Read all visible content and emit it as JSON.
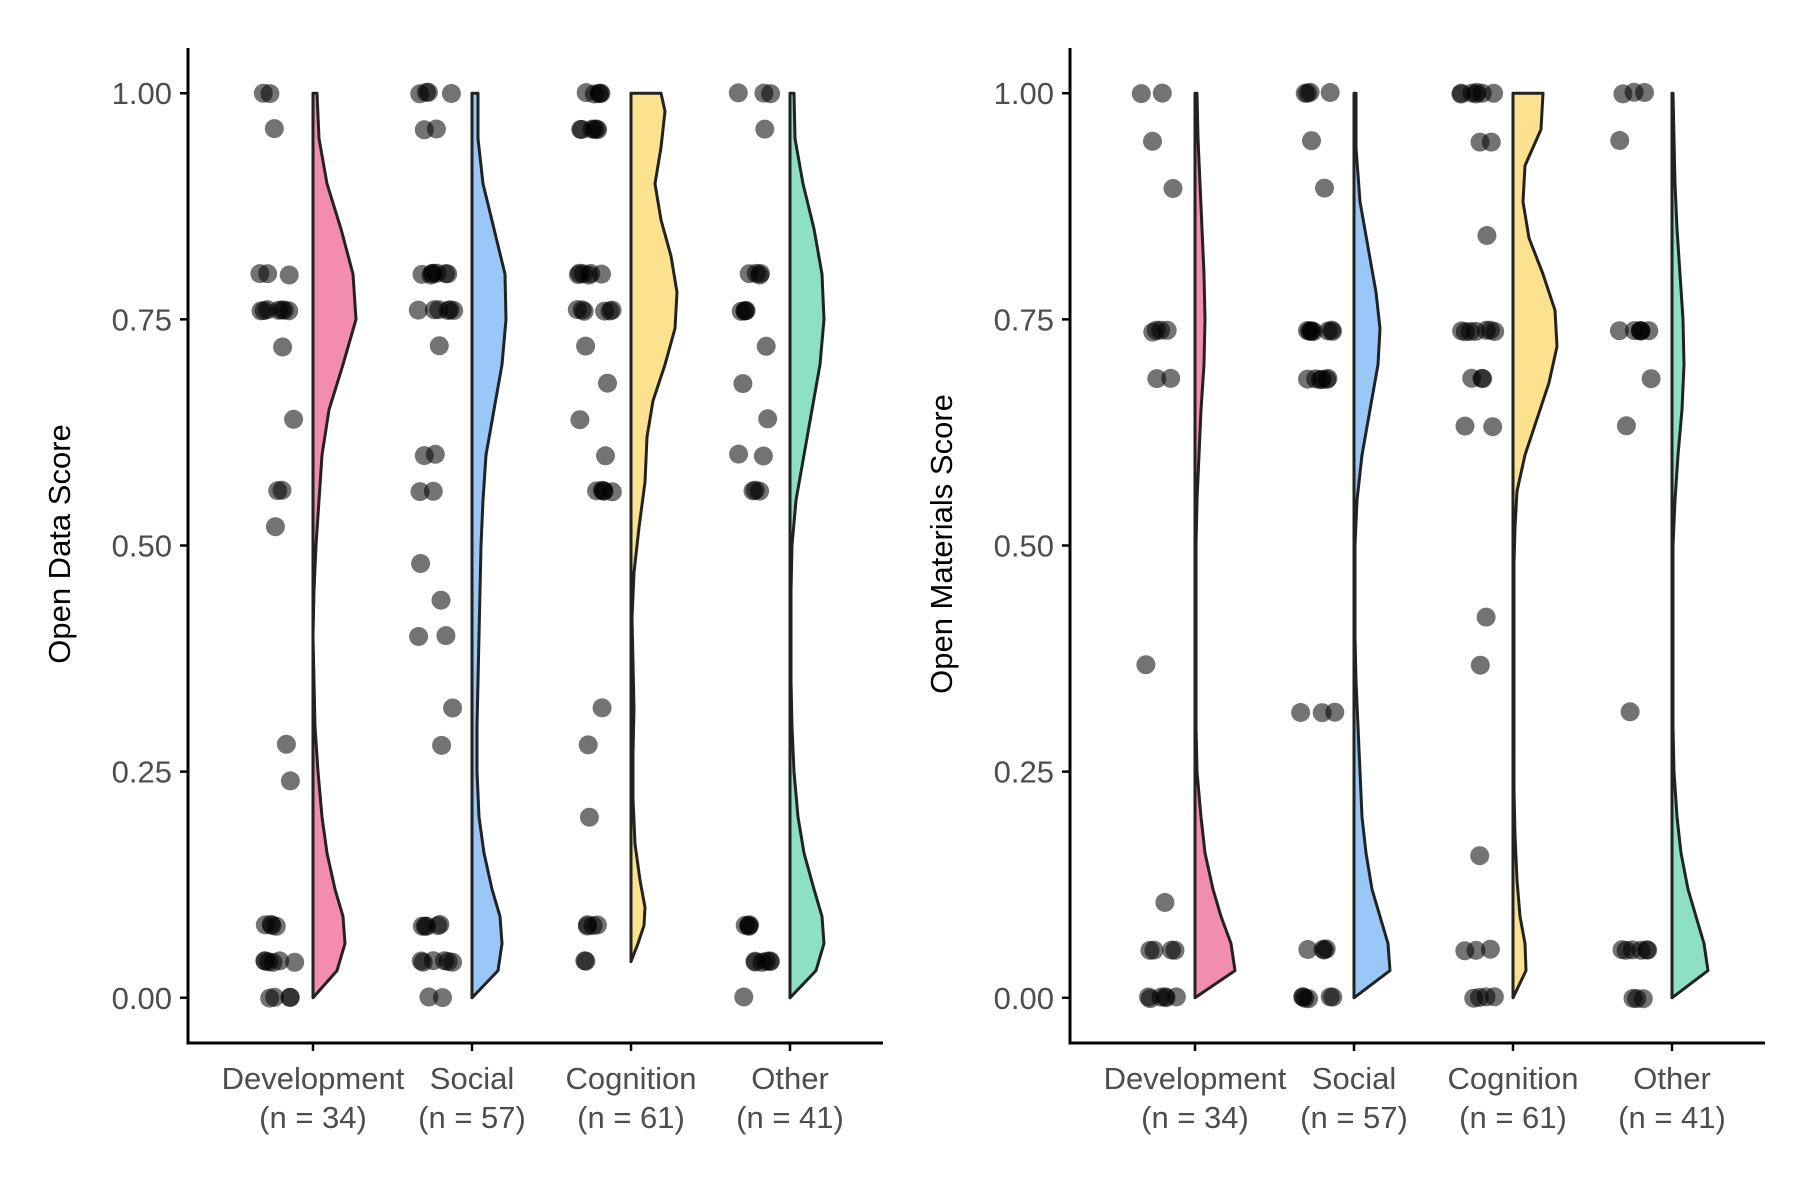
{
  "chart_data": [
    {
      "type": "raincloud",
      "ylabel": "Open Data Score",
      "ylim": [
        -0.05,
        1.05
      ],
      "y_ticks": [
        "0.00",
        "0.25",
        "0.50",
        "0.75",
        "1.00"
      ],
      "categories": [
        {
          "label": "Development",
          "n_label": "(n = 34)",
          "color": "#F28CB1",
          "points": [
            1.0,
            1.0,
            0.96,
            0.8,
            0.8,
            0.8,
            0.76,
            0.76,
            0.76,
            0.76,
            0.76,
            0.76,
            0.76,
            0.72,
            0.64,
            0.56,
            0.56,
            0.52,
            0.28,
            0.24,
            0.08,
            0.08,
            0.08,
            0.08,
            0.04,
            0.04,
            0.04,
            0.04,
            0.04,
            0.04,
            0.0,
            0.0,
            0.0,
            0.0
          ],
          "density": [
            [
              0.0,
              0.0
            ],
            [
              0.03,
              0.24
            ],
            [
              0.06,
              0.32
            ],
            [
              0.09,
              0.3
            ],
            [
              0.12,
              0.22
            ],
            [
              0.16,
              0.14
            ],
            [
              0.2,
              0.09
            ],
            [
              0.25,
              0.05
            ],
            [
              0.3,
              0.02
            ],
            [
              0.35,
              0.01
            ],
            [
              0.4,
              0.0
            ],
            [
              0.45,
              0.01
            ],
            [
              0.5,
              0.03
            ],
            [
              0.55,
              0.06
            ],
            [
              0.6,
              0.09
            ],
            [
              0.65,
              0.16
            ],
            [
              0.7,
              0.3
            ],
            [
              0.75,
              0.43
            ],
            [
              0.8,
              0.4
            ],
            [
              0.85,
              0.28
            ],
            [
              0.9,
              0.14
            ],
            [
              0.95,
              0.06
            ],
            [
              1.0,
              0.04
            ]
          ]
        },
        {
          "label": "Social",
          "n_label": "(n = 57)",
          "color": "#99C7F7",
          "points": [
            1.0,
            1.0,
            1.0,
            1.0,
            0.96,
            0.96,
            0.8,
            0.8,
            0.8,
            0.8,
            0.8,
            0.8,
            0.8,
            0.76,
            0.76,
            0.76,
            0.76,
            0.76,
            0.76,
            0.72,
            0.6,
            0.6,
            0.56,
            0.56,
            0.48,
            0.44,
            0.4,
            0.4,
            0.32,
            0.28,
            0.08,
            0.08,
            0.08,
            0.08,
            0.08,
            0.04,
            0.04,
            0.04,
            0.04,
            0.04,
            0.04,
            0.0,
            0.0
          ],
          "density": [
            [
              0.0,
              0.0
            ],
            [
              0.03,
              0.26
            ],
            [
              0.06,
              0.3
            ],
            [
              0.09,
              0.28
            ],
            [
              0.12,
              0.2
            ],
            [
              0.16,
              0.12
            ],
            [
              0.2,
              0.07
            ],
            [
              0.25,
              0.05
            ],
            [
              0.3,
              0.05
            ],
            [
              0.35,
              0.06
            ],
            [
              0.4,
              0.07
            ],
            [
              0.45,
              0.08
            ],
            [
              0.5,
              0.09
            ],
            [
              0.55,
              0.11
            ],
            [
              0.6,
              0.14
            ],
            [
              0.65,
              0.22
            ],
            [
              0.7,
              0.3
            ],
            [
              0.75,
              0.34
            ],
            [
              0.8,
              0.33
            ],
            [
              0.85,
              0.22
            ],
            [
              0.9,
              0.11
            ],
            [
              0.95,
              0.06
            ],
            [
              1.0,
              0.06
            ]
          ]
        },
        {
          "label": "Cognition",
          "n_label": "(n = 61)",
          "color": "#FCE18E",
          "points": [
            1.0,
            1.0,
            1.0,
            1.0,
            1.0,
            0.96,
            0.96,
            0.96,
            0.96,
            0.96,
            0.96,
            0.8,
            0.8,
            0.8,
            0.8,
            0.8,
            0.8,
            0.76,
            0.76,
            0.76,
            0.76,
            0.76,
            0.76,
            0.72,
            0.68,
            0.64,
            0.6,
            0.56,
            0.56,
            0.56,
            0.56,
            0.56,
            0.32,
            0.28,
            0.2,
            0.08,
            0.08,
            0.08,
            0.08,
            0.04,
            0.04
          ],
          "density": [
            [
              0.04,
              0.0
            ],
            [
              0.06,
              0.07
            ],
            [
              0.08,
              0.13
            ],
            [
              0.1,
              0.14
            ],
            [
              0.13,
              0.09
            ],
            [
              0.17,
              0.04
            ],
            [
              0.22,
              0.02
            ],
            [
              0.27,
              0.02
            ],
            [
              0.32,
              0.03
            ],
            [
              0.37,
              0.02
            ],
            [
              0.42,
              0.01
            ],
            [
              0.47,
              0.03
            ],
            [
              0.52,
              0.08
            ],
            [
              0.57,
              0.14
            ],
            [
              0.62,
              0.16
            ],
            [
              0.66,
              0.22
            ],
            [
              0.7,
              0.34
            ],
            [
              0.74,
              0.44
            ],
            [
              0.78,
              0.46
            ],
            [
              0.82,
              0.4
            ],
            [
              0.86,
              0.3
            ],
            [
              0.9,
              0.24
            ],
            [
              0.94,
              0.3
            ],
            [
              0.98,
              0.34
            ],
            [
              1.0,
              0.3
            ]
          ]
        },
        {
          "label": "Other",
          "n_label": "(n = 41)",
          "color": "#8EE0C2",
          "points": [
            1.0,
            1.0,
            1.0,
            0.96,
            0.8,
            0.8,
            0.8,
            0.8,
            0.76,
            0.76,
            0.76,
            0.76,
            0.72,
            0.68,
            0.64,
            0.6,
            0.6,
            0.56,
            0.56,
            0.56,
            0.08,
            0.08,
            0.08,
            0.08,
            0.04,
            0.04,
            0.04,
            0.04,
            0.04,
            0.04,
            0.0
          ],
          "density": [
            [
              0.0,
              0.0
            ],
            [
              0.03,
              0.26
            ],
            [
              0.06,
              0.34
            ],
            [
              0.09,
              0.32
            ],
            [
              0.12,
              0.24
            ],
            [
              0.16,
              0.14
            ],
            [
              0.2,
              0.08
            ],
            [
              0.25,
              0.04
            ],
            [
              0.3,
              0.02
            ],
            [
              0.35,
              0.01
            ],
            [
              0.4,
              0.01
            ],
            [
              0.45,
              0.01
            ],
            [
              0.5,
              0.02
            ],
            [
              0.55,
              0.06
            ],
            [
              0.6,
              0.14
            ],
            [
              0.65,
              0.22
            ],
            [
              0.7,
              0.3
            ],
            [
              0.75,
              0.34
            ],
            [
              0.8,
              0.32
            ],
            [
              0.85,
              0.24
            ],
            [
              0.9,
              0.13
            ],
            [
              0.95,
              0.05
            ],
            [
              1.0,
              0.04
            ]
          ]
        }
      ]
    },
    {
      "type": "raincloud",
      "ylabel": "Open Materials Score",
      "ylim": [
        -0.05,
        1.05
      ],
      "y_ticks": [
        "0.00",
        "0.25",
        "0.50",
        "0.75",
        "1.00"
      ],
      "categories": [
        {
          "label": "Development",
          "n_label": "(n = 34)",
          "color": "#F28CB1",
          "points": [
            1.0,
            1.0,
            0.947,
            0.895,
            0.737,
            0.737,
            0.737,
            0.737,
            0.684,
            0.684,
            0.368,
            0.105,
            0.053,
            0.053,
            0.053,
            0.053,
            0.0,
            0.0,
            0.0,
            0.0,
            0.0,
            0.0
          ],
          "density": [
            [
              0.0,
              0.0
            ],
            [
              0.03,
              0.4
            ],
            [
              0.06,
              0.36
            ],
            [
              0.09,
              0.26
            ],
            [
              0.12,
              0.18
            ],
            [
              0.16,
              0.1
            ],
            [
              0.2,
              0.06
            ],
            [
              0.25,
              0.02
            ],
            [
              0.3,
              0.01
            ],
            [
              0.35,
              0.01
            ],
            [
              0.4,
              0.01
            ],
            [
              0.45,
              0.01
            ],
            [
              0.5,
              0.01
            ],
            [
              0.55,
              0.02
            ],
            [
              0.6,
              0.04
            ],
            [
              0.65,
              0.06
            ],
            [
              0.7,
              0.09
            ],
            [
              0.75,
              0.1
            ],
            [
              0.8,
              0.09
            ],
            [
              0.85,
              0.07
            ],
            [
              0.9,
              0.05
            ],
            [
              0.95,
              0.03
            ],
            [
              1.0,
              0.02
            ]
          ]
        },
        {
          "label": "Social",
          "n_label": "(n = 57)",
          "color": "#99C7F7",
          "points": [
            1.0,
            1.0,
            1.0,
            1.0,
            0.947,
            0.895,
            0.737,
            0.737,
            0.737,
            0.737,
            0.737,
            0.737,
            0.737,
            0.737,
            0.684,
            0.684,
            0.684,
            0.684,
            0.684,
            0.684,
            0.316,
            0.316,
            0.316,
            0.053,
            0.053,
            0.053,
            0.053,
            0.0,
            0.0,
            0.0,
            0.0,
            0.0,
            0.0
          ],
          "density": [
            [
              0.0,
              0.0
            ],
            [
              0.03,
              0.36
            ],
            [
              0.06,
              0.34
            ],
            [
              0.09,
              0.26
            ],
            [
              0.12,
              0.18
            ],
            [
              0.16,
              0.12
            ],
            [
              0.2,
              0.08
            ],
            [
              0.25,
              0.06
            ],
            [
              0.3,
              0.04
            ],
            [
              0.35,
              0.02
            ],
            [
              0.4,
              0.01
            ],
            [
              0.45,
              0.01
            ],
            [
              0.5,
              0.01
            ],
            [
              0.55,
              0.03
            ],
            [
              0.6,
              0.08
            ],
            [
              0.65,
              0.16
            ],
            [
              0.7,
              0.24
            ],
            [
              0.74,
              0.26
            ],
            [
              0.78,
              0.22
            ],
            [
              0.83,
              0.14
            ],
            [
              0.88,
              0.06
            ],
            [
              0.94,
              0.02
            ],
            [
              1.0,
              0.02
            ]
          ]
        },
        {
          "label": "Cognition",
          "n_label": "(n = 61)",
          "color": "#FCE18E",
          "points": [
            1.0,
            1.0,
            1.0,
            1.0,
            1.0,
            1.0,
            1.0,
            0.947,
            0.947,
            0.842,
            0.737,
            0.737,
            0.737,
            0.737,
            0.737,
            0.737,
            0.737,
            0.684,
            0.684,
            0.684,
            0.632,
            0.632,
            0.421,
            0.368,
            0.158,
            0.053,
            0.053,
            0.053,
            0.0,
            0.0,
            0.0,
            0.0
          ],
          "density": [
            [
              0.0,
              0.0
            ],
            [
              0.03,
              0.13
            ],
            [
              0.06,
              0.12
            ],
            [
              0.09,
              0.07
            ],
            [
              0.13,
              0.04
            ],
            [
              0.18,
              0.02
            ],
            [
              0.23,
              0.01
            ],
            [
              0.28,
              0.01
            ],
            [
              0.33,
              0.01
            ],
            [
              0.38,
              0.01
            ],
            [
              0.43,
              0.01
            ],
            [
              0.48,
              0.01
            ],
            [
              0.52,
              0.02
            ],
            [
              0.56,
              0.04
            ],
            [
              0.6,
              0.12
            ],
            [
              0.64,
              0.24
            ],
            [
              0.68,
              0.36
            ],
            [
              0.72,
              0.44
            ],
            [
              0.76,
              0.42
            ],
            [
              0.8,
              0.3
            ],
            [
              0.84,
              0.16
            ],
            [
              0.88,
              0.1
            ],
            [
              0.92,
              0.12
            ],
            [
              0.96,
              0.28
            ],
            [
              1.0,
              0.3
            ]
          ]
        },
        {
          "label": "Other",
          "n_label": "(n = 41)",
          "color": "#8EE0C2",
          "points": [
            1.0,
            1.0,
            1.0,
            0.947,
            0.737,
            0.737,
            0.737,
            0.737,
            0.737,
            0.737,
            0.684,
            0.632,
            0.316,
            0.053,
            0.053,
            0.053,
            0.053,
            0.053,
            0.053,
            0.0,
            0.0,
            0.0
          ],
          "density": [
            [
              0.0,
              0.0
            ],
            [
              0.03,
              0.36
            ],
            [
              0.06,
              0.32
            ],
            [
              0.09,
              0.24
            ],
            [
              0.12,
              0.16
            ],
            [
              0.16,
              0.09
            ],
            [
              0.2,
              0.05
            ],
            [
              0.25,
              0.02
            ],
            [
              0.3,
              0.01
            ],
            [
              0.35,
              0.01
            ],
            [
              0.4,
              0.01
            ],
            [
              0.45,
              0.01
            ],
            [
              0.5,
              0.01
            ],
            [
              0.55,
              0.03
            ],
            [
              0.6,
              0.06
            ],
            [
              0.65,
              0.1
            ],
            [
              0.7,
              0.12
            ],
            [
              0.75,
              0.11
            ],
            [
              0.8,
              0.08
            ],
            [
              0.85,
              0.05
            ],
            [
              0.9,
              0.03
            ],
            [
              0.95,
              0.02
            ],
            [
              1.0,
              0.01
            ]
          ]
        }
      ]
    }
  ]
}
